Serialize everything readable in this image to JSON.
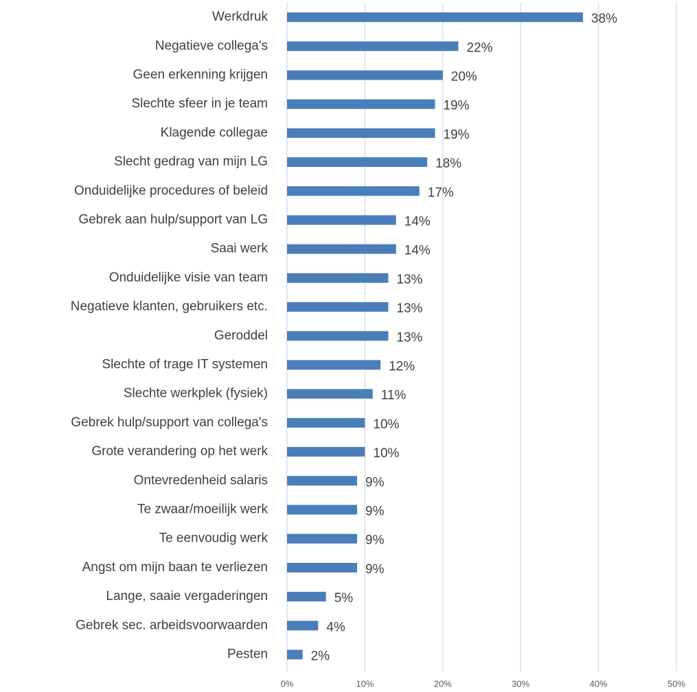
{
  "chart_data": {
    "type": "bar",
    "orientation": "horizontal",
    "categories": [
      "Werkdruk",
      "Negatieve collega's",
      "Geen erkenning krijgen",
      "Slechte sfeer in je team",
      "Klagende collegae",
      "Slecht gedrag van mijn LG",
      "Onduidelijke procedures of beleid",
      "Gebrek aan hulp/support van LG",
      "Saai werk",
      "Onduidelijke visie van team",
      "Negatieve klanten, gebruikers etc.",
      "Geroddel",
      "Slechte of trage IT systemen",
      "Slechte werkplek (fysiek)",
      "Gebrek hulp/support van collega's",
      "Grote verandering op het werk",
      "Ontevredenheid salaris",
      "Te zwaar/moeilijk werk",
      "Te eenvoudig werk",
      "Angst om mijn baan te verliezen",
      "Lange, saaie vergaderingen",
      "Gebrek sec. arbeidsvoorwaarden",
      "Pesten"
    ],
    "values": [
      38,
      22,
      20,
      19,
      19,
      18,
      17,
      14,
      14,
      13,
      13,
      13,
      12,
      11,
      10,
      10,
      9,
      9,
      9,
      9,
      5,
      4,
      2
    ],
    "value_labels": [
      "38%",
      "22%",
      "20%",
      "19%",
      "19%",
      "18%",
      "17%",
      "14%",
      "14%",
      "13%",
      "13%",
      "13%",
      "12%",
      "11%",
      "10%",
      "10%",
      "9%",
      "9%",
      "9%",
      "9%",
      "5%",
      "4%",
      "2%"
    ],
    "color": "#4a7ebb",
    "xlim": [
      0,
      50
    ],
    "xticks": [
      {
        "value": 0,
        "label": "0%"
      },
      {
        "value": 10,
        "label": "10%"
      },
      {
        "value": 20,
        "label": "20%"
      },
      {
        "value": 30,
        "label": "30%"
      },
      {
        "value": 40,
        "label": "40%"
      },
      {
        "value": 50,
        "label": "50%"
      }
    ],
    "grid": true
  }
}
